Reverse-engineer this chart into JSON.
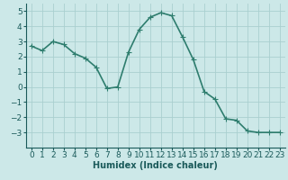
{
  "x": [
    0,
    1,
    2,
    3,
    4,
    5,
    6,
    7,
    8,
    9,
    10,
    11,
    12,
    13,
    14,
    15,
    16,
    17,
    18,
    19,
    20,
    21,
    22,
    23
  ],
  "y": [
    2.7,
    2.4,
    3.0,
    2.8,
    2.2,
    1.9,
    1.3,
    -0.1,
    0.0,
    2.3,
    3.8,
    4.6,
    4.9,
    4.7,
    3.3,
    1.8,
    -0.3,
    -0.8,
    -2.1,
    -2.2,
    -2.9,
    -3.0,
    -3.0,
    -3.0
  ],
  "line_color": "#2e7d6e",
  "marker": "+",
  "marker_size": 4,
  "linewidth": 1.2,
  "bg_color": "#cce8e8",
  "grid_color": "#aacfcf",
  "xlabel": "Humidex (Indice chaleur)",
  "ylim": [
    -4,
    5.5
  ],
  "xlim": [
    -0.5,
    23.5
  ],
  "yticks": [
    -3,
    -2,
    -1,
    0,
    1,
    2,
    3,
    4,
    5
  ],
  "xticks": [
    0,
    1,
    2,
    3,
    4,
    5,
    6,
    7,
    8,
    9,
    10,
    11,
    12,
    13,
    14,
    15,
    16,
    17,
    18,
    19,
    20,
    21,
    22,
    23
  ],
  "xlabel_fontsize": 7,
  "tick_fontsize": 6.5,
  "tick_color": "#1a5a5a"
}
